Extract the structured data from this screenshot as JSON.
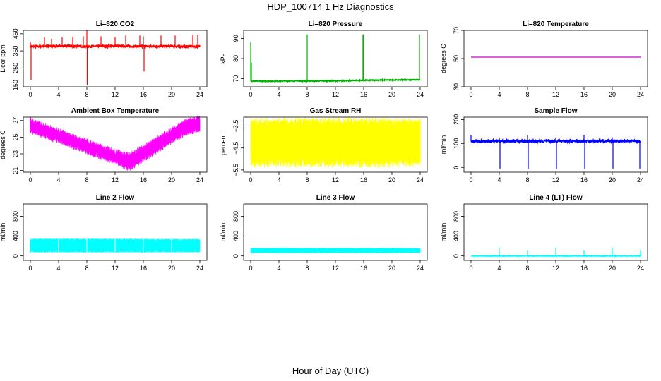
{
  "figure": {
    "title": "HDP_100714  1 Hz Diagnostics",
    "xlabel": "Hour of Day (UTC)"
  },
  "chart_data": [
    {
      "type": "line",
      "title": "Li–820 CO2",
      "ylabel": "Licor ppm",
      "xlim": [
        0,
        24
      ],
      "ylim": [
        140,
        470
      ],
      "xticks": [
        0,
        4,
        8,
        12,
        16,
        20,
        24
      ],
      "xtick_labels": [
        "0",
        "4",
        "8",
        "12",
        "16",
        "20",
        "24"
      ],
      "yticks": [
        150,
        250,
        350,
        450
      ],
      "ytick_labels": [
        "150",
        "250",
        "350",
        "450"
      ],
      "color": "#ff0000",
      "pattern": "spikes",
      "series": [
        {
          "x": [
            0,
            2,
            4,
            6,
            8,
            10,
            12,
            14,
            16,
            18,
            20,
            22,
            24
          ],
          "values": [
            375,
            377,
            378,
            377,
            376,
            377,
            378,
            377,
            376,
            377,
            378,
            376,
            375
          ]
        }
      ],
      "spikes_up": [
        [
          0,
          400
        ],
        [
          2,
          430
        ],
        [
          3,
          420
        ],
        [
          4.5,
          430
        ],
        [
          6,
          430
        ],
        [
          7.5,
          435
        ],
        [
          8,
          470
        ],
        [
          10,
          435
        ],
        [
          12,
          430
        ],
        [
          13.5,
          440
        ],
        [
          15.5,
          440
        ],
        [
          16,
          435
        ],
        [
          18.5,
          440
        ],
        [
          20.5,
          440
        ],
        [
          23,
          445
        ],
        [
          23.7,
          445
        ]
      ],
      "spikes_down": [
        [
          0.1,
          180
        ],
        [
          8.05,
          150
        ],
        [
          16.1,
          230
        ]
      ],
      "noise": 6
    },
    {
      "type": "line",
      "title": "Li–820 Pressure",
      "ylabel": "kPa",
      "xlim": [
        0,
        24
      ],
      "ylim": [
        66,
        94
      ],
      "xticks": [
        0,
        4,
        8,
        12,
        16,
        20,
        24
      ],
      "xtick_labels": [
        "0",
        "4",
        "8",
        "12",
        "16",
        "20",
        "24"
      ],
      "yticks": [
        70,
        80,
        90
      ],
      "ytick_labels": [
        "70",
        "80",
        "90"
      ],
      "color": "#00b000",
      "pattern": "spikes",
      "series": [
        {
          "x": [
            0,
            4,
            8,
            12,
            16,
            20,
            24
          ],
          "values": [
            68.8,
            68.8,
            68.9,
            68.9,
            69.2,
            69.4,
            69.5
          ]
        }
      ],
      "spikes_up": [
        [
          0,
          88
        ],
        [
          0.1,
          78
        ],
        [
          8,
          92
        ],
        [
          15.9,
          92
        ],
        [
          16,
          92
        ],
        [
          23.9,
          92
        ]
      ],
      "spikes_down": [],
      "noise": 0.2
    },
    {
      "type": "line",
      "title": "Li–820 Temperature",
      "ylabel": "degrees C",
      "xlim": [
        0,
        24
      ],
      "ylim": [
        30,
        70
      ],
      "xticks": [
        0,
        4,
        8,
        12,
        16,
        20,
        24
      ],
      "xtick_labels": [
        "0",
        "4",
        "8",
        "12",
        "16",
        "20",
        "24"
      ],
      "yticks": [
        30,
        50,
        70
      ],
      "ytick_labels": [
        "30",
        "50",
        "70"
      ],
      "color": "#cc00cc",
      "pattern": "flat",
      "series": [
        {
          "x": [
            0,
            24
          ],
          "values": [
            51,
            51
          ]
        }
      ],
      "noise": 0
    },
    {
      "type": "area",
      "title": "Ambient Box Temperature",
      "ylabel": "degrees C",
      "xlim": [
        0,
        24
      ],
      "ylim": [
        20.8,
        27.4
      ],
      "xticks": [
        0,
        4,
        8,
        12,
        16,
        20,
        24
      ],
      "xtick_labels": [
        "0",
        "4",
        "8",
        "12",
        "16",
        "20",
        "24"
      ],
      "yticks": [
        21,
        23,
        25,
        27
      ],
      "ytick_labels": [
        "21",
        "23",
        "25",
        "27"
      ],
      "color": "#ff00ff",
      "pattern": "band",
      "series": [
        {
          "x": [
            0,
            2,
            4,
            6,
            8,
            10,
            12,
            14,
            16,
            18,
            20,
            22,
            24
          ],
          "upper": [
            27,
            26.3,
            25.7,
            25,
            24.4,
            23.8,
            23.2,
            22.8,
            23.7,
            24.8,
            25.8,
            26.8,
            27.2
          ],
          "lower": [
            25.8,
            25.2,
            24.6,
            24,
            23.3,
            22.7,
            22.1,
            21.3,
            22.4,
            23.5,
            24.6,
            25.6,
            26
          ]
        }
      ],
      "noise": 0.3
    },
    {
      "type": "area",
      "title": "Gas Stream RH",
      "ylabel": "percent",
      "xlim": [
        0,
        24
      ],
      "ylim": [
        -5.6,
        -3.1
      ],
      "xticks": [
        0,
        4,
        8,
        12,
        16,
        20,
        24
      ],
      "xtick_labels": [
        "0",
        "4",
        "8",
        "12",
        "16",
        "20",
        "24"
      ],
      "yticks": [
        -5.5,
        -4.5,
        -3.5
      ],
      "ytick_labels": [
        "−5.5",
        "−4.5",
        "−3.5"
      ],
      "color": "#ffff00",
      "pattern": "band",
      "series": [
        {
          "x": [
            0,
            12,
            24
          ],
          "upper": [
            -3.4,
            -3.4,
            -3.4
          ],
          "lower": [
            -5.1,
            -5.1,
            -5.1
          ]
        }
      ],
      "noise": 0.2
    },
    {
      "type": "line",
      "title": "Sample Flow",
      "ylabel": "ml/min",
      "xlim": [
        0,
        24
      ],
      "ylim": [
        -20,
        210
      ],
      "xticks": [
        0,
        4,
        8,
        12,
        16,
        20,
        24
      ],
      "xtick_labels": [
        "0",
        "4",
        "8",
        "12",
        "16",
        "20",
        "24"
      ],
      "yticks": [
        0,
        100,
        200
      ],
      "ytick_labels": [
        "0",
        "100",
        "200"
      ],
      "color": "#0000ff",
      "pattern": "spikes",
      "series": [
        {
          "x": [
            0,
            4,
            8,
            12,
            16,
            20,
            24
          ],
          "values": [
            110,
            110,
            110,
            110,
            110,
            110,
            110
          ]
        }
      ],
      "spikes_up": [
        [
          0,
          135
        ],
        [
          4,
          125
        ],
        [
          8,
          135
        ],
        [
          12,
          125
        ],
        [
          16,
          135
        ],
        [
          20,
          125
        ]
      ],
      "spikes_down": [
        [
          4.1,
          -5
        ],
        [
          8.1,
          -5
        ],
        [
          12.1,
          -5
        ],
        [
          16.1,
          -5
        ],
        [
          20.1,
          -5
        ],
        [
          23.9,
          -5
        ]
      ],
      "noise": 6
    },
    {
      "type": "area",
      "title": "Line 2 Flow",
      "ylabel": "ml/min",
      "xlim": [
        0,
        24
      ],
      "ylim": [
        -90,
        1050
      ],
      "xticks": [
        0,
        4,
        8,
        12,
        16,
        20,
        24
      ],
      "xtick_labels": [
        "0",
        "4",
        "8",
        "12",
        "16",
        "20",
        "24"
      ],
      "yticks": [
        0,
        400,
        800
      ],
      "ytick_labels": [
        "0",
        "400",
        "800"
      ],
      "color": "#00ffff",
      "pattern": "band",
      "series": [
        {
          "x": [
            0,
            12,
            24
          ],
          "upper": [
            330,
            330,
            320
          ],
          "lower": [
            90,
            90,
            90
          ]
        }
      ],
      "noise": 15
    },
    {
      "type": "area",
      "title": "Line 3 Flow",
      "ylabel": "ml/min",
      "xlim": [
        0,
        24
      ],
      "ylim": [
        -90,
        1050
      ],
      "xticks": [
        0,
        4,
        8,
        12,
        16,
        20,
        24
      ],
      "xtick_labels": [
        "0",
        "4",
        "8",
        "12",
        "16",
        "20",
        "24"
      ],
      "yticks": [
        0,
        400,
        800
      ],
      "ytick_labels": [
        "0",
        "400",
        "800"
      ],
      "color": "#00ffff",
      "pattern": "band",
      "series": [
        {
          "x": [
            0,
            12,
            24
          ],
          "upper": [
            150,
            150,
            150
          ],
          "lower": [
            70,
            70,
            70
          ]
        }
      ],
      "noise": 8
    },
    {
      "type": "line",
      "title": "Line 4 (LT) Flow",
      "ylabel": "ml/min",
      "xlim": [
        0,
        24
      ],
      "ylim": [
        -90,
        1050
      ],
      "xticks": [
        0,
        4,
        8,
        12,
        16,
        20,
        24
      ],
      "xtick_labels": [
        "0",
        "4",
        "8",
        "12",
        "16",
        "20",
        "24"
      ],
      "yticks": [
        0,
        400,
        800
      ],
      "ytick_labels": [
        "0",
        "400",
        "800"
      ],
      "color": "#00ffff",
      "pattern": "spikes",
      "series": [
        {
          "x": [
            0,
            12,
            24
          ],
          "values": [
            0,
            0,
            0
          ]
        }
      ],
      "spikes_up": [
        [
          4,
          170
        ],
        [
          8,
          110
        ],
        [
          12,
          170
        ],
        [
          16,
          110
        ],
        [
          20,
          170
        ],
        [
          24,
          110
        ]
      ],
      "spikes_down": [],
      "noise": 5
    }
  ]
}
